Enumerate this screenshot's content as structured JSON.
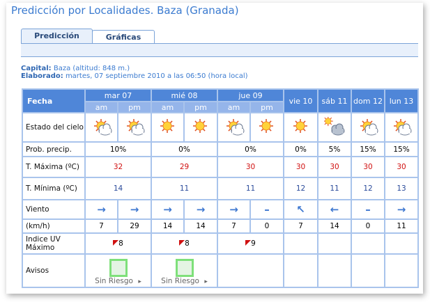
{
  "title": "Predicción por Localidades. Baza (Granada)",
  "tabs": [
    "Predicción",
    "Gráficas"
  ],
  "capital_label": "Capital:",
  "capital": "Baza (altitud: 848 m.)",
  "elaborado_label": "Elaborado:",
  "elaborado": "martes, 07 septiembre 2010 a las 06:50 (hora local)",
  "rows": {
    "fecha": "Fecha",
    "cielo": "Estado del cielo",
    "prob": "Prob. precip.",
    "tmax": "T. Máxima (ºC)",
    "tmin": "T. Mínima (ºC)",
    "viento": "Viento",
    "kmh": "(km/h)",
    "uv": "Indice UV Máximo",
    "avisos": "Avisos"
  },
  "days": [
    "mar 07",
    "mié 08",
    "jue 09",
    "vie 10",
    "sáb 11",
    "dom 12",
    "lun 13"
  ],
  "am": "am",
  "pm": "pm",
  "sky": [
    "sun-cloud",
    "sun-cloud",
    "sun",
    "sun",
    "sun-cloud",
    "sun",
    "sun",
    "cloud-sun",
    "sun-cloud",
    "sun-cloud"
  ],
  "prob": [
    "10%",
    "0%",
    "0%",
    "0%",
    "5%",
    "15%",
    "15%"
  ],
  "tmax": [
    "32",
    "29",
    "30",
    "30",
    "30",
    "30",
    "30"
  ],
  "tmin": [
    "14",
    "11",
    "11",
    "12",
    "11",
    "12",
    "13"
  ],
  "wind": [
    "→",
    "→",
    "→",
    "→",
    "→",
    "–",
    "↖",
    "←",
    "–",
    "→"
  ],
  "kmh": [
    "7",
    "29",
    "14",
    "14",
    "7",
    "0",
    "7",
    "14",
    "0",
    "11"
  ],
  "uv": [
    "8",
    "8",
    "9"
  ],
  "avisos": [
    "Sin Riesgo",
    "Sin Riesgo"
  ],
  "arrow": "▸"
}
